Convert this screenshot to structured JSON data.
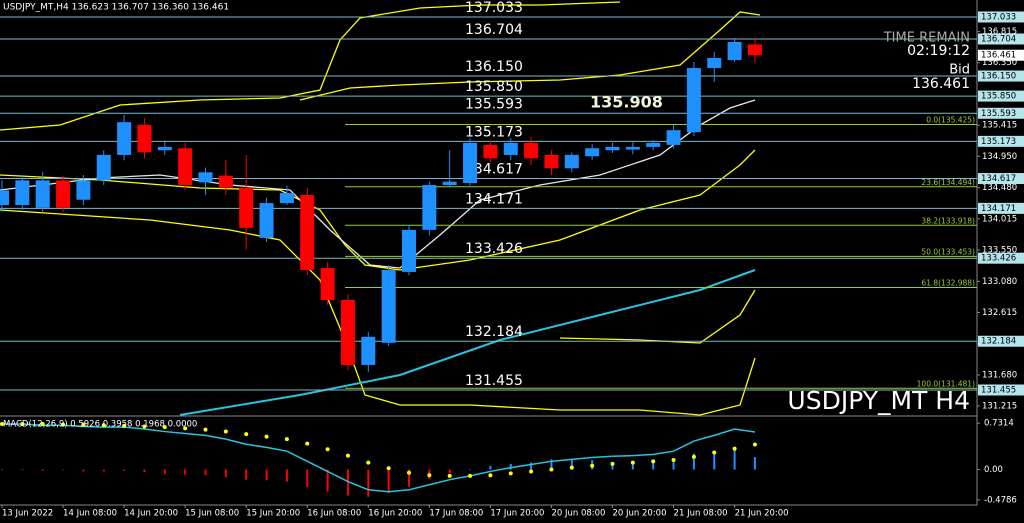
{
  "chart_data": [
    {
      "type": "candlestick",
      "header": "USDJPY_MT,H4  136.623 136.707 136.360 136.461",
      "watermark": "USDJPY_MT H4",
      "info": {
        "time_remain_label": "TIME REMAIN",
        "time_remain": "02:19:12",
        "bid_label": "Bid",
        "bid": 136.461
      },
      "annotation": 135.908,
      "categories": [
        "13 Jun 2022",
        null,
        null,
        "14 Jun 08:00",
        null,
        null,
        "14 Jun 20:00",
        null,
        null,
        "15 Jun 08:00",
        null,
        null,
        "15 Jun 20:00",
        null,
        null,
        "16 Jun 08:00",
        null,
        null,
        "16 Jun 20:00",
        null,
        null,
        "17 Jun 08:00",
        null,
        null,
        "17 Jun 20:00",
        null,
        null,
        "20 Jun 08:00",
        null,
        null,
        "20 Jun 20:00",
        null,
        null,
        "21 Jun 08:00",
        null,
        null,
        "21 Jun 20:00",
        null
      ],
      "open": [
        134.22,
        134.22,
        134.18,
        134.59,
        134.3,
        134.59,
        134.97,
        135.42,
        135.04,
        135.07,
        134.56,
        134.66,
        134.48,
        133.73,
        134.25,
        134.37,
        133.28,
        132.8,
        131.83,
        132.16,
        133.22,
        133.85,
        134.52,
        134.55,
        135.12,
        134.97,
        135.15,
        134.97,
        134.77,
        134.95,
        135.04,
        135.05,
        135.09,
        135.12,
        135.31,
        136.27,
        136.39,
        136.623
      ],
      "high": [
        134.59,
        134.67,
        134.72,
        134.66,
        134.67,
        135.04,
        135.57,
        135.52,
        135.19,
        135.15,
        134.78,
        134.89,
        134.97,
        134.33,
        134.51,
        134.48,
        133.37,
        132.88,
        132.32,
        133.32,
        133.92,
        134.57,
        135.04,
        135.22,
        135.19,
        135.22,
        135.24,
        135.04,
        135.01,
        135.13,
        135.15,
        135.16,
        135.19,
        135.42,
        136.36,
        136.51,
        136.72,
        136.707
      ],
      "low": [
        134.12,
        134.15,
        134.12,
        134.12,
        134.22,
        134.52,
        134.89,
        134.92,
        134.97,
        134.45,
        134.37,
        134.37,
        133.55,
        133.67,
        134.22,
        133.17,
        132.73,
        131.75,
        131.72,
        132.11,
        133.17,
        133.77,
        134.48,
        134.51,
        134.86,
        134.89,
        134.82,
        134.67,
        134.71,
        134.89,
        135.0,
        134.98,
        135.04,
        135.07,
        135.25,
        136.06,
        136.36,
        136.36
      ],
      "close": [
        134.44,
        134.59,
        134.59,
        134.18,
        134.59,
        134.97,
        135.46,
        135.01,
        135.09,
        134.52,
        134.71,
        134.48,
        133.88,
        134.25,
        134.4,
        133.25,
        132.8,
        131.83,
        132.25,
        133.25,
        133.85,
        134.52,
        134.57,
        135.15,
        134.92,
        135.15,
        134.92,
        134.77,
        134.97,
        135.07,
        135.09,
        135.09,
        135.15,
        135.34,
        136.27,
        136.42,
        136.66,
        136.461
      ],
      "colors": {
        "up": "#1e90ff",
        "down": "#ff0000",
        "level": "#7fb8c8",
        "fib": "#9acd32"
      },
      "ylim": [
        131.081,
        137.287
      ],
      "yticks": [
        136.815,
        {
          "value": 136.35,
          "label": "136.350"
        },
        135.415,
        {
          "value": 134.95,
          "label": "134.950"
        },
        {
          "value": 134.48,
          "label": "134.480"
        },
        134.015,
        {
          "value": 133.55,
          "label": "133.550"
        },
        {
          "value": 133.08,
          "label": "133.080"
        },
        132.615,
        132.145,
        {
          "value": 131.68,
          "label": "131.680"
        },
        131.215
      ],
      "levels": [
        137.033,
        136.704,
        {
          "value": 136.15,
          "label": "136.150"
        },
        {
          "value": 135.85,
          "label": "135.850"
        },
        135.593,
        135.173,
        134.617,
        134.171,
        133.426,
        132.184,
        131.455
      ],
      "fib_levels": [
        {
          "value": 135.425,
          "label": "0.0(135.425)"
        },
        {
          "value": 134.494,
          "label": "23.6(134.494)"
        },
        {
          "value": 133.918,
          "label": "38.2(133.918)"
        },
        {
          "value": 133.453,
          "label": "50.0(133.453)"
        },
        {
          "value": 132.988,
          "label": "61.8(132.988)"
        },
        {
          "value": 131.481,
          "label": "100.0(131.481)"
        }
      ]
    },
    {
      "type": "macd",
      "title": "MACD(12,26,9) 0.5926 0.3958 0.1968 0.0000",
      "macd": [
        0.72,
        0.72,
        0.7,
        0.7,
        0.68,
        0.67,
        0.67,
        0.64,
        0.6,
        0.57,
        0.54,
        0.48,
        0.4,
        0.35,
        0.29,
        0.13,
        -0.03,
        -0.19,
        -0.32,
        -0.35,
        -0.32,
        -0.24,
        -0.16,
        -0.1,
        -0.03,
        0.03,
        0.08,
        0.13,
        0.16,
        0.19,
        0.21,
        0.22,
        0.24,
        0.29,
        0.45,
        0.54,
        0.64,
        0.5926
      ],
      "signal": [
        0.72,
        0.72,
        0.72,
        0.71,
        0.71,
        0.7,
        0.69,
        0.68,
        0.67,
        0.65,
        0.63,
        0.6,
        0.56,
        0.52,
        0.48,
        0.41,
        0.32,
        0.22,
        0.11,
        0.02,
        -0.05,
        -0.09,
        -0.1,
        -0.1,
        -0.09,
        -0.06,
        -0.03,
        0.0,
        0.03,
        0.06,
        0.09,
        0.11,
        0.13,
        0.15,
        0.2,
        0.27,
        0.33,
        0.3958
      ],
      "histogram": [
        0.0,
        0.0,
        -0.02,
        -0.01,
        -0.03,
        -0.03,
        -0.02,
        -0.04,
        -0.07,
        -0.08,
        -0.09,
        -0.12,
        -0.16,
        -0.17,
        -0.19,
        -0.28,
        -0.35,
        -0.41,
        -0.43,
        -0.37,
        -0.27,
        -0.15,
        -0.06,
        0.0,
        0.06,
        0.09,
        0.11,
        0.16,
        0.16,
        0.15,
        0.12,
        0.11,
        0.11,
        0.14,
        0.25,
        0.27,
        0.31,
        0.1968
      ],
      "colors": {
        "macd": "#27c4e0",
        "signal": "#ffff00",
        "positive": "#1e90ff",
        "negative": "#ff0000"
      },
      "ylim": [
        -0.56,
        0.83
      ],
      "yticks": [
        0.7314,
        {
          "value": 0,
          "label": "0.00"
        },
        -0.4786
      ]
    }
  ]
}
